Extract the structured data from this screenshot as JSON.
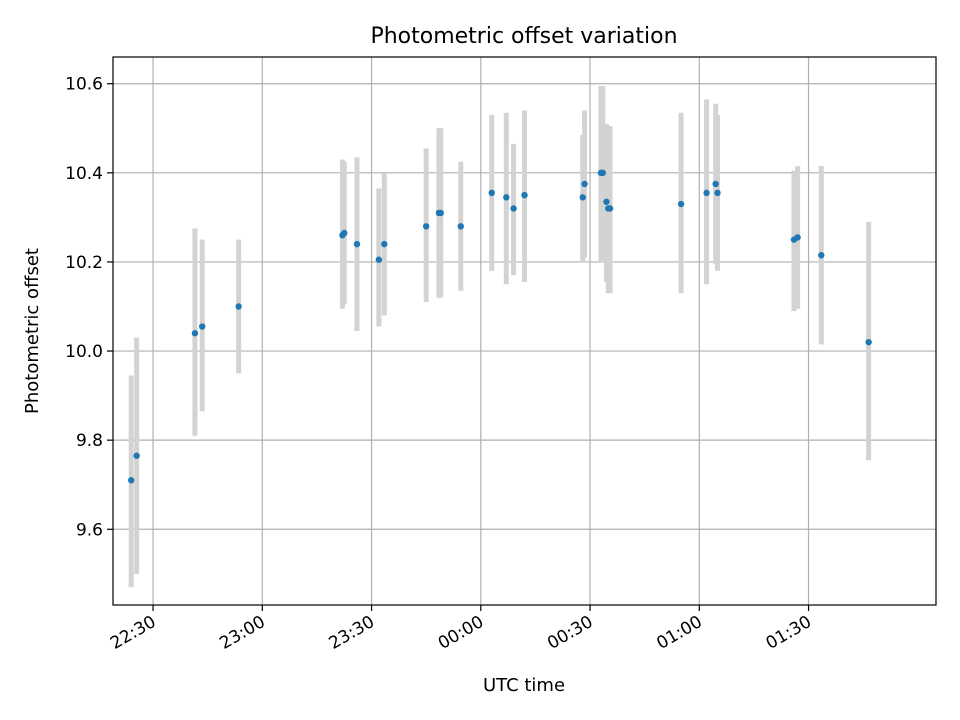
{
  "chart_data": {
    "type": "scatter",
    "title": "Photometric offset variation",
    "xlabel": "UTC time",
    "ylabel": "Photometric offset",
    "xlim": [
      "22:19",
      "02:05"
    ],
    "ylim": [
      9.43,
      10.66
    ],
    "x_ticks": [
      "22:30",
      "23:00",
      "23:30",
      "00:00",
      "00:30",
      "01:00",
      "01:30"
    ],
    "y_ticks": [
      "9.6",
      "9.8",
      "10.0",
      "10.2",
      "10.4",
      "10.6"
    ],
    "grid": true,
    "colors": {
      "point": "#1f77b4",
      "errorbar": "#d3d3d3",
      "grid": "#b0b0b0"
    },
    "points": [
      {
        "time": "22:24",
        "y": 9.71,
        "low": 9.47,
        "high": 9.945
      },
      {
        "time": "22:25.5",
        "y": 9.765,
        "low": 9.5,
        "high": 10.03
      },
      {
        "time": "22:41.5",
        "y": 10.04,
        "low": 9.81,
        "high": 10.275
      },
      {
        "time": "22:43.5",
        "y": 10.055,
        "low": 9.865,
        "high": 10.25
      },
      {
        "time": "22:53.5",
        "y": 10.1,
        "low": 9.95,
        "high": 10.25
      },
      {
        "time": "23:22",
        "y": 10.26,
        "low": 10.095,
        "high": 10.43
      },
      {
        "time": "23:22.5",
        "y": 10.265,
        "low": 10.105,
        "high": 10.425
      },
      {
        "time": "23:26",
        "y": 10.24,
        "low": 10.045,
        "high": 10.435
      },
      {
        "time": "23:32",
        "y": 10.205,
        "low": 10.055,
        "high": 10.365
      },
      {
        "time": "23:33.5",
        "y": 10.24,
        "low": 10.08,
        "high": 10.4
      },
      {
        "time": "23:45",
        "y": 10.28,
        "low": 10.11,
        "high": 10.455
      },
      {
        "time": "23:48.5",
        "y": 10.31,
        "low": 10.12,
        "high": 10.5
      },
      {
        "time": "23:49",
        "y": 10.31,
        "low": 10.12,
        "high": 10.5
      },
      {
        "time": "23:54.5",
        "y": 10.28,
        "low": 10.135,
        "high": 10.425
      },
      {
        "time": "00:03",
        "y": 10.355,
        "low": 10.18,
        "high": 10.53
      },
      {
        "time": "00:07",
        "y": 10.345,
        "low": 10.15,
        "high": 10.535
      },
      {
        "time": "00:09",
        "y": 10.32,
        "low": 10.17,
        "high": 10.465
      },
      {
        "time": "00:12",
        "y": 10.35,
        "low": 10.155,
        "high": 10.54
      },
      {
        "time": "00:28",
        "y": 10.345,
        "low": 10.2,
        "high": 10.485
      },
      {
        "time": "00:28.5",
        "y": 10.375,
        "low": 10.21,
        "high": 10.54
      },
      {
        "time": "00:33",
        "y": 10.4,
        "low": 10.2,
        "high": 10.595
      },
      {
        "time": "00:33.5",
        "y": 10.4,
        "low": 10.205,
        "high": 10.595
      },
      {
        "time": "00:34.5",
        "y": 10.335,
        "low": 10.155,
        "high": 10.51
      },
      {
        "time": "00:35",
        "y": 10.32,
        "low": 10.13,
        "high": 10.505
      },
      {
        "time": "00:35.5",
        "y": 10.32,
        "low": 10.13,
        "high": 10.505
      },
      {
        "time": "00:55",
        "y": 10.33,
        "low": 10.13,
        "high": 10.535
      },
      {
        "time": "01:02",
        "y": 10.355,
        "low": 10.15,
        "high": 10.565
      },
      {
        "time": "01:04.5",
        "y": 10.375,
        "low": 10.195,
        "high": 10.555
      },
      {
        "time": "01:05",
        "y": 10.355,
        "low": 10.18,
        "high": 10.53
      },
      {
        "time": "01:26",
        "y": 10.25,
        "low": 10.09,
        "high": 10.405
      },
      {
        "time": "01:27",
        "y": 10.255,
        "low": 10.095,
        "high": 10.415
      },
      {
        "time": "01:33.5",
        "y": 10.215,
        "low": 10.015,
        "high": 10.415
      },
      {
        "time": "01:46.5",
        "y": 10.02,
        "low": 9.755,
        "high": 10.29
      }
    ]
  }
}
